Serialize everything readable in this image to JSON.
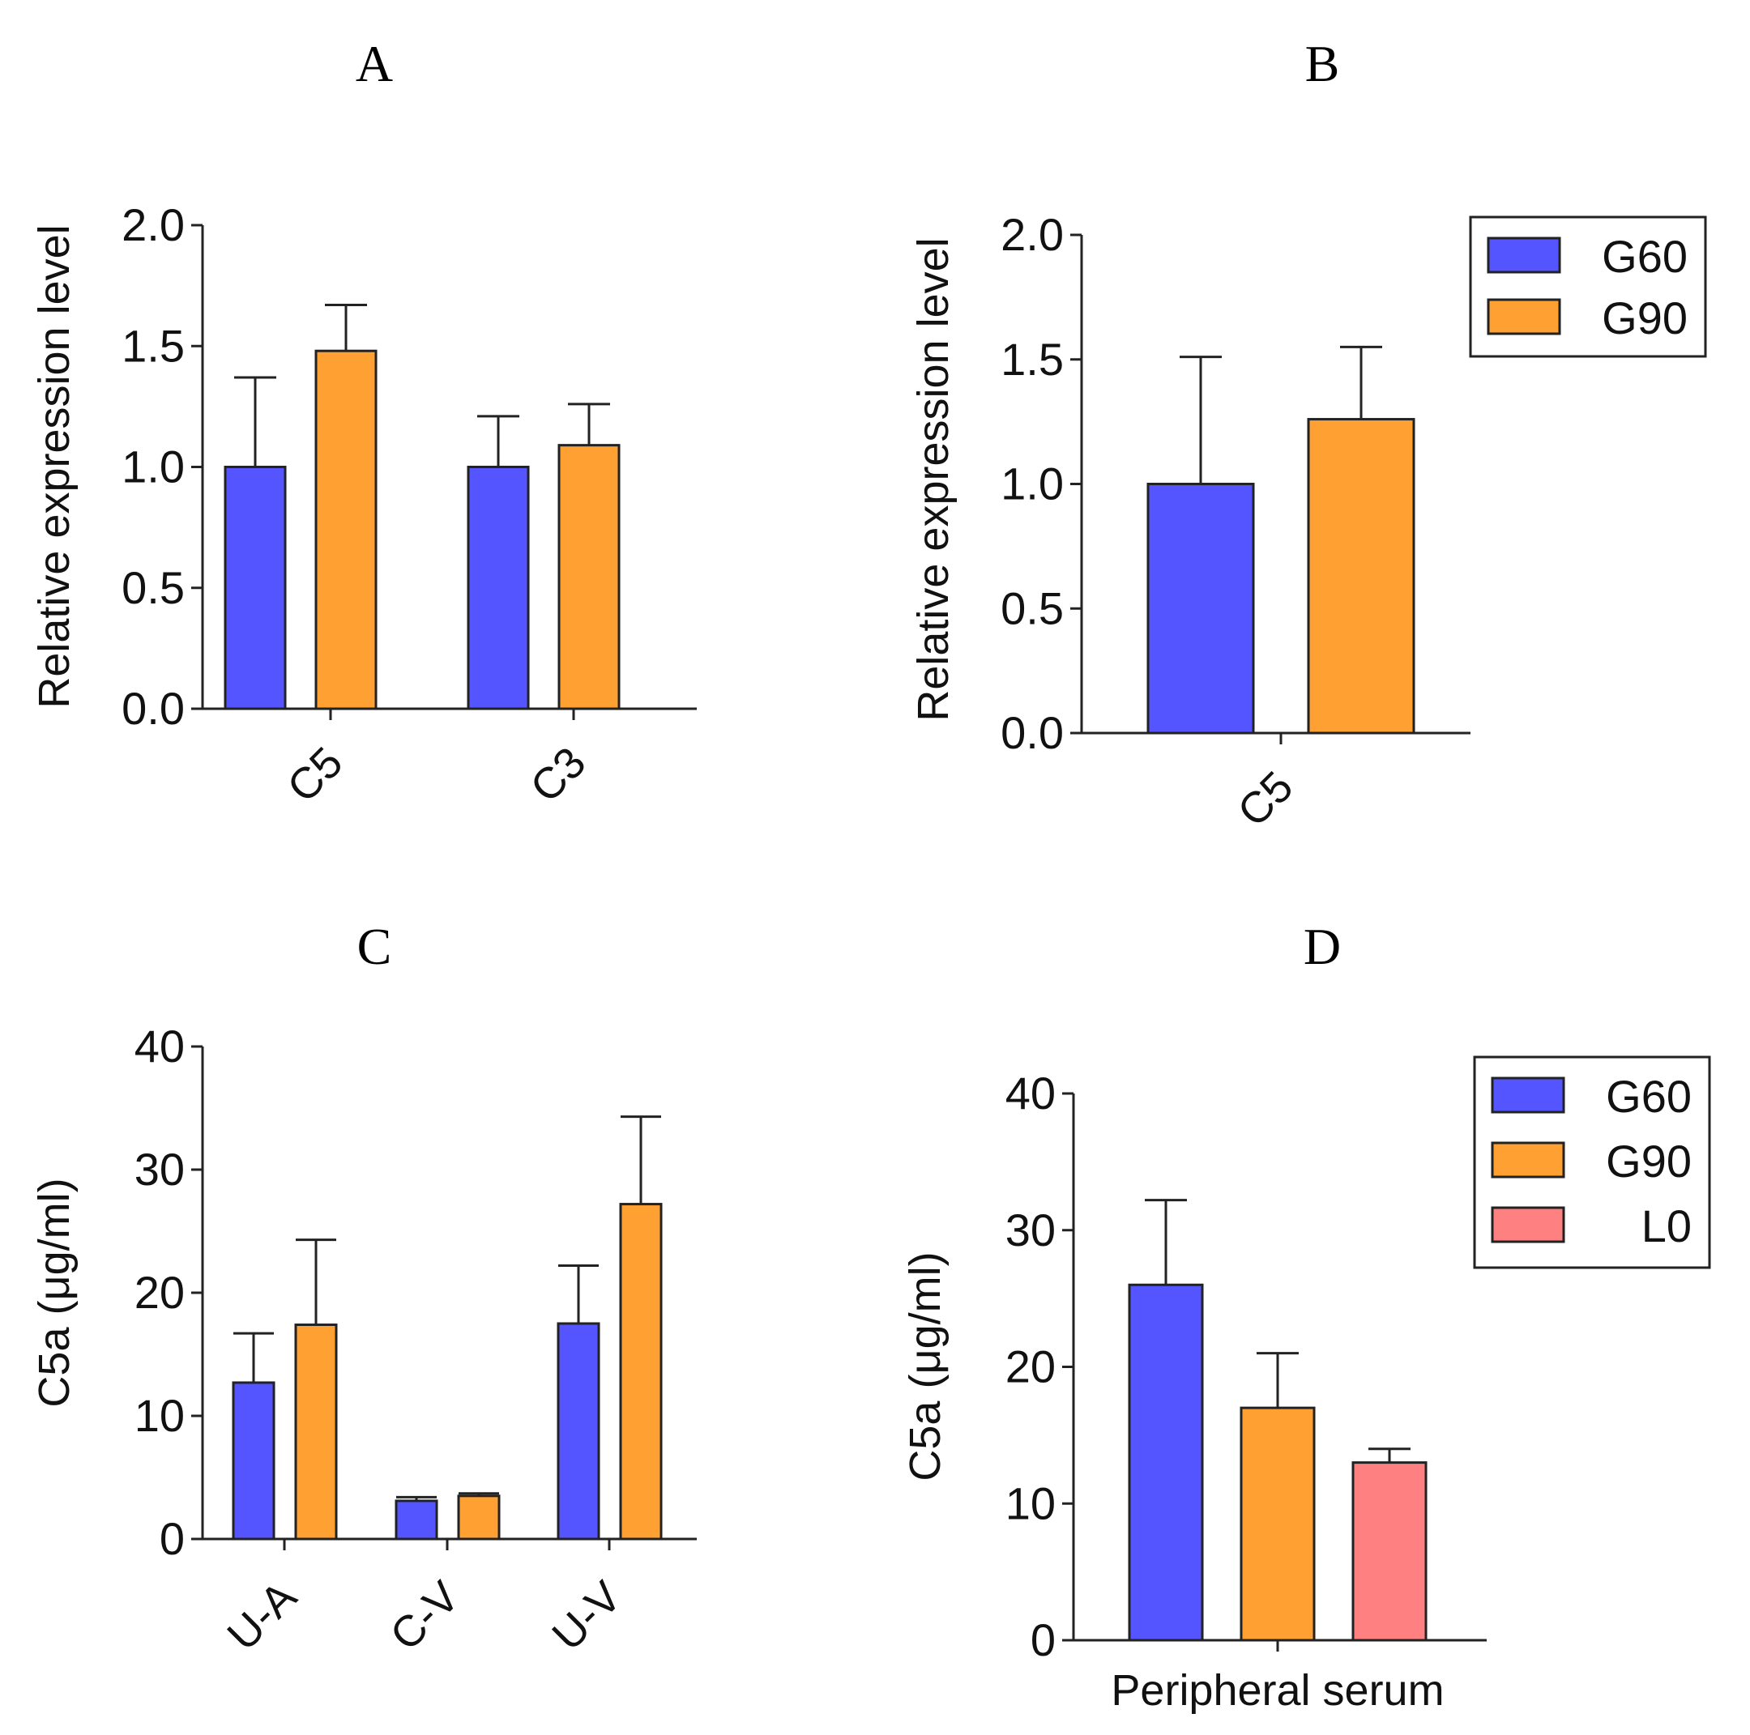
{
  "colors": {
    "G60": "#5555ff",
    "G90": "#ffa033",
    "L0": "#ff8080"
  },
  "chart_data": [
    {
      "panel": "A",
      "type": "bar",
      "ylabel": "Relative expression level",
      "ylim": [
        0,
        2.0
      ],
      "yticks": [
        "0.0",
        "0.5",
        "1.0",
        "1.5",
        "2.0"
      ],
      "categories": [
        "C5",
        "C3"
      ],
      "series": [
        {
          "name": "G60",
          "values": [
            1.0,
            1.0
          ],
          "errors": [
            0.37,
            0.21
          ]
        },
        {
          "name": "G90",
          "values": [
            1.48,
            1.09
          ],
          "errors": [
            0.19,
            0.17
          ]
        }
      ],
      "legend": null
    },
    {
      "panel": "B",
      "type": "bar",
      "ylabel": "Relative expression level",
      "ylim": [
        0,
        2.0
      ],
      "yticks": [
        "0.0",
        "0.5",
        "1.0",
        "1.5",
        "2.0"
      ],
      "categories": [
        "C5"
      ],
      "series": [
        {
          "name": "G60",
          "values": [
            1.0
          ],
          "errors": [
            0.51
          ]
        },
        {
          "name": "G90",
          "values": [
            1.26
          ],
          "errors": [
            0.29
          ]
        }
      ],
      "legend": [
        "G60",
        "G90"
      ]
    },
    {
      "panel": "C",
      "type": "bar",
      "ylabel": "C5a (μg/ml)",
      "ylim": [
        0,
        40
      ],
      "yticks": [
        "0",
        "10",
        "20",
        "30",
        "40"
      ],
      "categories": [
        "U-A",
        "C-V",
        "U-V"
      ],
      "series": [
        {
          "name": "G60",
          "values": [
            12.7,
            3.1,
            17.5
          ],
          "errors": [
            4.0,
            0.3,
            4.7
          ]
        },
        {
          "name": "G90",
          "values": [
            17.4,
            3.5,
            27.2
          ],
          "errors": [
            6.9,
            0.2,
            7.1
          ]
        }
      ],
      "legend": null
    },
    {
      "panel": "D",
      "type": "bar",
      "ylabel": "C5a (μg/ml)",
      "ylim": [
        0,
        40
      ],
      "yticks": [
        "0",
        "10",
        "20",
        "30",
        "40"
      ],
      "categories": [
        "Peripheral serum"
      ],
      "series": [
        {
          "name": "G60",
          "values": [
            26.0
          ],
          "errors": [
            6.2
          ]
        },
        {
          "name": "G90",
          "values": [
            17.0
          ],
          "errors": [
            4.0
          ]
        },
        {
          "name": "L0",
          "values": [
            13.0
          ],
          "errors": [
            1.0
          ]
        }
      ],
      "legend": [
        "G60",
        "G90",
        "L0"
      ]
    }
  ]
}
